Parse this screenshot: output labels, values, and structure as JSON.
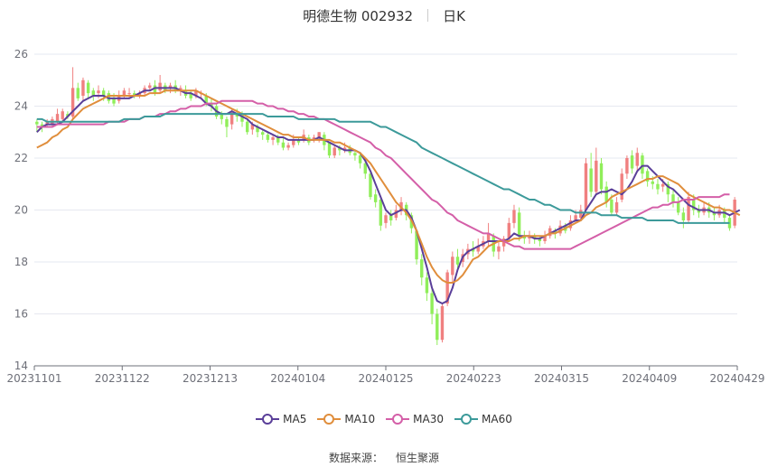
{
  "header": {
    "stock_title": "明德生物 002932",
    "period_label": "日K"
  },
  "source": {
    "label": "数据来源：",
    "provider": "恒生聚源"
  },
  "colors": {
    "up": "#f08080",
    "down": "#90ee5a",
    "ma5": "#5a3f99",
    "ma10": "#e08e3c",
    "ma30": "#d45fa8",
    "ma60": "#3c9a9a",
    "grid": "#e6e8f0",
    "axis": "#6e7079"
  },
  "chart_data": {
    "type": "candlestick",
    "xlabels": [
      "20231101",
      "20231122",
      "20231213",
      "20240104",
      "20240125",
      "20240223",
      "20240315",
      "20240409",
      "20240429"
    ],
    "ylim": [
      14,
      26
    ],
    "yticks": [
      14,
      16,
      18,
      20,
      22,
      24,
      26
    ],
    "grid": true,
    "legend_position": "bottom",
    "candles": [
      [
        23.4,
        23.3,
        23.5,
        23.0
      ],
      [
        23.3,
        23.2,
        23.4,
        23.0
      ],
      [
        23.3,
        23.4,
        23.5,
        23.2
      ],
      [
        23.3,
        23.5,
        23.6,
        23.2
      ],
      [
        23.4,
        23.7,
        23.9,
        23.3
      ],
      [
        23.5,
        23.8,
        23.9,
        23.4
      ],
      [
        23.7,
        23.6,
        23.8,
        23.5
      ],
      [
        23.6,
        24.7,
        25.5,
        23.5
      ],
      [
        24.7,
        24.3,
        24.9,
        24.2
      ],
      [
        24.4,
        25.0,
        25.1,
        24.2
      ],
      [
        24.9,
        24.5,
        25.0,
        24.3
      ],
      [
        24.6,
        24.4,
        24.7,
        24.2
      ],
      [
        24.5,
        24.6,
        24.8,
        24.3
      ],
      [
        24.6,
        24.4,
        24.7,
        24.2
      ],
      [
        24.5,
        24.2,
        24.6,
        24.1
      ],
      [
        24.3,
        24.1,
        24.5,
        24.0
      ],
      [
        24.2,
        24.4,
        24.6,
        24.1
      ],
      [
        24.4,
        24.6,
        24.7,
        24.3
      ],
      [
        24.5,
        24.5,
        24.7,
        24.3
      ],
      [
        24.5,
        24.4,
        24.6,
        24.3
      ],
      [
        24.4,
        24.5,
        24.6,
        24.3
      ],
      [
        24.5,
        24.7,
        24.8,
        24.4
      ],
      [
        24.7,
        24.8,
        24.9,
        24.6
      ],
      [
        24.8,
        24.5,
        25.0,
        24.4
      ],
      [
        24.6,
        24.9,
        25.2,
        24.5
      ],
      [
        24.8,
        24.6,
        24.9,
        24.5
      ],
      [
        24.7,
        24.8,
        24.9,
        24.5
      ],
      [
        24.8,
        24.6,
        25.0,
        24.5
      ],
      [
        24.6,
        24.7,
        24.8,
        24.4
      ],
      [
        24.6,
        24.4,
        24.8,
        24.3
      ],
      [
        24.5,
        24.3,
        24.6,
        24.2
      ],
      [
        24.4,
        24.6,
        24.7,
        24.3
      ],
      [
        24.5,
        24.5,
        24.6,
        24.3
      ],
      [
        24.4,
        24.1,
        24.5,
        24.0
      ],
      [
        24.1,
        24.0,
        24.3,
        23.8
      ],
      [
        24.0,
        23.6,
        24.1,
        23.5
      ],
      [
        23.7,
        23.5,
        23.8,
        23.3
      ],
      [
        23.5,
        23.2,
        23.6,
        22.8
      ],
      [
        23.3,
        23.7,
        23.9,
        23.1
      ],
      [
        23.7,
        23.6,
        23.9,
        23.4
      ],
      [
        23.7,
        23.4,
        23.8,
        23.2
      ],
      [
        23.4,
        23.0,
        23.5,
        22.9
      ],
      [
        23.1,
        23.3,
        23.4,
        22.9
      ],
      [
        23.2,
        23.0,
        23.3,
        22.8
      ],
      [
        23.0,
        22.9,
        23.1,
        22.7
      ],
      [
        22.9,
        22.7,
        23.0,
        22.6
      ],
      [
        22.7,
        22.8,
        22.9,
        22.5
      ],
      [
        22.8,
        22.6,
        22.9,
        22.5
      ],
      [
        22.6,
        22.4,
        22.8,
        22.3
      ],
      [
        22.4,
        22.5,
        22.6,
        22.3
      ],
      [
        22.5,
        22.7,
        22.9,
        22.4
      ],
      [
        22.7,
        22.6,
        22.8,
        22.5
      ],
      [
        22.7,
        22.9,
        23.1,
        22.6
      ],
      [
        22.8,
        22.6,
        22.9,
        22.5
      ],
      [
        22.7,
        22.8,
        22.9,
        22.6
      ],
      [
        22.8,
        23.0,
        23.0,
        22.6
      ],
      [
        22.9,
        22.5,
        23.0,
        22.3
      ],
      [
        22.6,
        22.1,
        22.6,
        22.0
      ],
      [
        22.1,
        22.4,
        22.5,
        22.0
      ],
      [
        22.4,
        22.3,
        22.5,
        22.1
      ],
      [
        22.3,
        22.4,
        22.6,
        22.2
      ],
      [
        22.4,
        22.2,
        22.5,
        22.1
      ],
      [
        22.2,
        22.1,
        22.3,
        21.9
      ],
      [
        22.1,
        21.8,
        22.2,
        21.6
      ],
      [
        21.8,
        21.4,
        21.9,
        21.2
      ],
      [
        21.4,
        20.5,
        21.5,
        20.4
      ],
      [
        20.6,
        20.3,
        20.8,
        20.1
      ],
      [
        20.4,
        19.4,
        20.5,
        19.2
      ],
      [
        19.5,
        19.8,
        19.9,
        19.3
      ],
      [
        19.8,
        19.6,
        20.0,
        19.4
      ],
      [
        19.7,
        20.0,
        20.2,
        19.6
      ],
      [
        20.0,
        20.3,
        20.5,
        19.8
      ],
      [
        20.2,
        19.8,
        20.3,
        19.6
      ],
      [
        19.8,
        19.3,
        19.9,
        19.1
      ],
      [
        19.2,
        18.1,
        19.2,
        17.9
      ],
      [
        18.1,
        17.4,
        18.3,
        17.1
      ],
      [
        17.4,
        16.8,
        17.6,
        16.5
      ],
      [
        16.8,
        16.0,
        17.0,
        15.6
      ],
      [
        16.0,
        15.0,
        16.2,
        14.8
      ],
      [
        15.0,
        16.3,
        16.4,
        14.9
      ],
      [
        16.4,
        17.6,
        17.7,
        16.3
      ],
      [
        17.5,
        18.2,
        18.4,
        17.2
      ],
      [
        18.2,
        17.9,
        18.5,
        17.7
      ],
      [
        18.0,
        18.3,
        18.5,
        17.8
      ],
      [
        18.3,
        18.5,
        18.7,
        18.1
      ],
      [
        18.5,
        18.4,
        18.8,
        18.2
      ],
      [
        18.4,
        18.6,
        18.9,
        18.3
      ],
      [
        18.6,
        18.8,
        19.0,
        18.5
      ],
      [
        18.8,
        19.1,
        19.5,
        18.6
      ],
      [
        19.0,
        18.4,
        19.1,
        18.2
      ],
      [
        18.4,
        18.6,
        18.8,
        18.1
      ],
      [
        18.6,
        18.9,
        19.0,
        18.4
      ],
      [
        18.9,
        19.5,
        19.7,
        18.8
      ],
      [
        19.5,
        20.0,
        20.2,
        19.3
      ],
      [
        19.9,
        19.0,
        20.1,
        18.8
      ],
      [
        19.0,
        18.9,
        19.2,
        18.7
      ],
      [
        18.9,
        19.0,
        19.2,
        18.7
      ],
      [
        19.0,
        18.9,
        19.1,
        18.7
      ],
      [
        18.9,
        18.8,
        19.0,
        18.6
      ],
      [
        18.8,
        19.0,
        19.2,
        18.7
      ],
      [
        19.0,
        19.3,
        19.4,
        18.9
      ],
      [
        19.2,
        19.1,
        19.3,
        18.9
      ],
      [
        19.1,
        19.4,
        19.6,
        19.0
      ],
      [
        19.4,
        19.2,
        19.5,
        19.1
      ],
      [
        19.3,
        19.6,
        19.8,
        19.2
      ],
      [
        19.6,
        19.8,
        20.0,
        19.5
      ],
      [
        19.7,
        20.0,
        20.2,
        19.6
      ],
      [
        20.0,
        21.8,
        22.0,
        19.9
      ],
      [
        21.6,
        20.7,
        22.2,
        20.5
      ],
      [
        20.7,
        21.9,
        22.4,
        20.6
      ],
      [
        21.8,
        20.8,
        22.0,
        20.6
      ],
      [
        20.9,
        20.3,
        21.1,
        20.1
      ],
      [
        20.4,
        19.9,
        20.6,
        19.8
      ],
      [
        19.9,
        20.3,
        20.5,
        19.8
      ],
      [
        20.4,
        21.4,
        21.6,
        20.3
      ],
      [
        21.4,
        22.0,
        22.1,
        21.2
      ],
      [
        22.1,
        21.6,
        22.3,
        21.4
      ],
      [
        21.7,
        22.2,
        22.4,
        21.5
      ],
      [
        22.1,
        21.4,
        22.2,
        21.2
      ],
      [
        21.5,
        21.1,
        21.6,
        20.9
      ],
      [
        21.1,
        21.0,
        21.3,
        20.8
      ],
      [
        21.0,
        20.8,
        21.2,
        20.6
      ],
      [
        20.9,
        21.0,
        21.2,
        20.7
      ],
      [
        21.0,
        20.6,
        21.1,
        20.3
      ],
      [
        20.6,
        20.3,
        20.8,
        20.1
      ],
      [
        20.3,
        19.9,
        20.5,
        19.8
      ],
      [
        19.9,
        19.6,
        20.1,
        19.3
      ],
      [
        19.6,
        20.5,
        20.7,
        19.5
      ],
      [
        20.4,
        20.0,
        20.6,
        19.8
      ],
      [
        20.0,
        19.9,
        20.2,
        19.7
      ],
      [
        19.9,
        20.1,
        20.3,
        19.8
      ],
      [
        20.1,
        19.9,
        20.3,
        19.7
      ],
      [
        19.9,
        19.8,
        20.1,
        19.6
      ],
      [
        19.8,
        20.0,
        20.2,
        19.7
      ],
      [
        20.0,
        19.7,
        20.1,
        19.5
      ],
      [
        19.7,
        19.3,
        19.8,
        19.2
      ],
      [
        19.4,
        20.4,
        20.5,
        19.3
      ]
    ],
    "series": [
      {
        "name": "MA5",
        "values": [
          23.0,
          23.2,
          23.3,
          23.3,
          23.3,
          23.4,
          23.6,
          23.8,
          24.0,
          24.2,
          24.3,
          24.4,
          24.4,
          24.4,
          24.3,
          24.3,
          24.3,
          24.3,
          24.3,
          24.4,
          24.5,
          24.6,
          24.6,
          24.7,
          24.7,
          24.7,
          24.7,
          24.7,
          24.6,
          24.5,
          24.5,
          24.4,
          24.3,
          24.1,
          24.0,
          23.8,
          23.7,
          23.7,
          23.8,
          23.7,
          23.6,
          23.5,
          23.3,
          23.2,
          23.1,
          23.0,
          22.9,
          22.8,
          22.8,
          22.7,
          22.7,
          22.7,
          22.7,
          22.7,
          22.7,
          22.8,
          22.7,
          22.6,
          22.5,
          22.4,
          22.3,
          22.3,
          22.3,
          22.2,
          21.9,
          21.5,
          21.0,
          20.5,
          20.0,
          19.8,
          19.9,
          20.0,
          20.0,
          19.7,
          19.2,
          18.5,
          17.8,
          17.0,
          16.5,
          16.4,
          16.5,
          17.0,
          17.7,
          18.2,
          18.4,
          18.5,
          18.6,
          18.7,
          18.8,
          18.8,
          18.8,
          18.8,
          18.9,
          19.1,
          19.0,
          19.0,
          19.0,
          18.9,
          18.9,
          19.0,
          19.1,
          19.2,
          19.3,
          19.4,
          19.5,
          19.6,
          19.6,
          20.0,
          20.3,
          20.6,
          20.7,
          20.7,
          20.8,
          20.7,
          20.6,
          20.8,
          21.1,
          21.5,
          21.7,
          21.7,
          21.5,
          21.3,
          21.1,
          20.9,
          20.8,
          20.6,
          20.4,
          20.2,
          20.1,
          20.0,
          20.0,
          20.0,
          19.9,
          19.9,
          19.9,
          19.8,
          19.9,
          20.0
        ]
      },
      {
        "name": "MA10",
        "values": [
          22.4,
          22.5,
          22.6,
          22.8,
          22.9,
          23.1,
          23.2,
          23.5,
          23.7,
          23.9,
          24.0,
          24.1,
          24.2,
          24.3,
          24.4,
          24.4,
          24.4,
          24.4,
          24.4,
          24.4,
          24.4,
          24.4,
          24.5,
          24.5,
          24.5,
          24.6,
          24.6,
          24.6,
          24.6,
          24.6,
          24.6,
          24.6,
          24.5,
          24.4,
          24.3,
          24.2,
          24.1,
          24.0,
          23.9,
          23.8,
          23.7,
          23.6,
          23.5,
          23.4,
          23.3,
          23.2,
          23.1,
          23.0,
          22.9,
          22.9,
          22.8,
          22.8,
          22.8,
          22.7,
          22.7,
          22.7,
          22.7,
          22.7,
          22.6,
          22.6,
          22.5,
          22.4,
          22.3,
          22.2,
          22.0,
          21.8,
          21.5,
          21.2,
          20.9,
          20.6,
          20.3,
          20.1,
          19.9,
          19.6,
          19.2,
          18.7,
          18.2,
          17.8,
          17.5,
          17.3,
          17.2,
          17.2,
          17.3,
          17.5,
          17.8,
          18.1,
          18.2,
          18.4,
          18.6,
          18.7,
          18.8,
          18.8,
          18.8,
          18.9,
          18.9,
          19.0,
          19.0,
          19.0,
          19.0,
          19.0,
          19.1,
          19.1,
          19.2,
          19.3,
          19.4,
          19.5,
          19.6,
          19.8,
          19.9,
          20.1,
          20.2,
          20.3,
          20.5,
          20.6,
          20.7,
          20.8,
          20.9,
          21.0,
          21.1,
          21.2,
          21.2,
          21.3,
          21.3,
          21.2,
          21.1,
          21.0,
          20.8,
          20.6,
          20.5,
          20.4,
          20.3,
          20.2,
          20.1,
          20.1,
          20.0,
          20.0,
          19.9,
          19.8
        ]
      },
      {
        "name": "MA30",
        "values": [
          23.2,
          23.2,
          23.2,
          23.2,
          23.3,
          23.3,
          23.3,
          23.3,
          23.3,
          23.3,
          23.3,
          23.3,
          23.3,
          23.3,
          23.4,
          23.4,
          23.4,
          23.4,
          23.5,
          23.5,
          23.5,
          23.6,
          23.6,
          23.6,
          23.7,
          23.7,
          23.8,
          23.8,
          23.9,
          23.9,
          24.0,
          24.0,
          24.0,
          24.1,
          24.1,
          24.1,
          24.2,
          24.2,
          24.2,
          24.2,
          24.2,
          24.2,
          24.2,
          24.1,
          24.1,
          24.0,
          24.0,
          23.9,
          23.9,
          23.8,
          23.8,
          23.7,
          23.7,
          23.6,
          23.6,
          23.5,
          23.5,
          23.4,
          23.3,
          23.2,
          23.1,
          23.0,
          22.9,
          22.8,
          22.7,
          22.6,
          22.4,
          22.3,
          22.1,
          22.0,
          21.8,
          21.6,
          21.4,
          21.2,
          21.0,
          20.8,
          20.6,
          20.4,
          20.3,
          20.1,
          19.9,
          19.8,
          19.6,
          19.5,
          19.4,
          19.3,
          19.2,
          19.1,
          19.1,
          19.0,
          18.9,
          18.8,
          18.7,
          18.6,
          18.6,
          18.5,
          18.5,
          18.5,
          18.5,
          18.5,
          18.5,
          18.5,
          18.5,
          18.5,
          18.5,
          18.6,
          18.7,
          18.8,
          18.9,
          19.0,
          19.1,
          19.2,
          19.3,
          19.4,
          19.5,
          19.6,
          19.7,
          19.8,
          19.9,
          20.0,
          20.1,
          20.1,
          20.2,
          20.2,
          20.3,
          20.3,
          20.4,
          20.4,
          20.4,
          20.5,
          20.5,
          20.5,
          20.5,
          20.5,
          20.6,
          20.6
        ]
      },
      {
        "name": "MA60",
        "values": [
          23.5,
          23.5,
          23.4,
          23.4,
          23.4,
          23.4,
          23.4,
          23.4,
          23.4,
          23.4,
          23.4,
          23.4,
          23.4,
          23.4,
          23.4,
          23.4,
          23.4,
          23.5,
          23.5,
          23.5,
          23.5,
          23.6,
          23.6,
          23.6,
          23.6,
          23.7,
          23.7,
          23.7,
          23.7,
          23.7,
          23.7,
          23.7,
          23.7,
          23.7,
          23.7,
          23.7,
          23.7,
          23.7,
          23.7,
          23.7,
          23.7,
          23.7,
          23.7,
          23.7,
          23.7,
          23.6,
          23.6,
          23.6,
          23.6,
          23.6,
          23.6,
          23.5,
          23.5,
          23.5,
          23.5,
          23.5,
          23.5,
          23.5,
          23.5,
          23.4,
          23.4,
          23.4,
          23.4,
          23.4,
          23.4,
          23.4,
          23.3,
          23.2,
          23.2,
          23.1,
          23.0,
          22.9,
          22.8,
          22.7,
          22.6,
          22.4,
          22.3,
          22.2,
          22.1,
          22.0,
          21.9,
          21.8,
          21.7,
          21.6,
          21.5,
          21.4,
          21.3,
          21.2,
          21.1,
          21.0,
          20.9,
          20.8,
          20.8,
          20.7,
          20.6,
          20.5,
          20.4,
          20.4,
          20.3,
          20.2,
          20.2,
          20.1,
          20.0,
          20.0,
          20.0,
          19.9,
          19.9,
          19.9,
          19.9,
          19.9,
          19.8,
          19.8,
          19.8,
          19.8,
          19.7,
          19.7,
          19.7,
          19.7,
          19.7,
          19.6,
          19.6,
          19.6,
          19.6,
          19.6,
          19.6,
          19.5,
          19.5,
          19.5,
          19.5,
          19.5,
          19.5,
          19.5,
          19.5,
          19.5,
          19.5,
          19.5
        ]
      }
    ]
  }
}
